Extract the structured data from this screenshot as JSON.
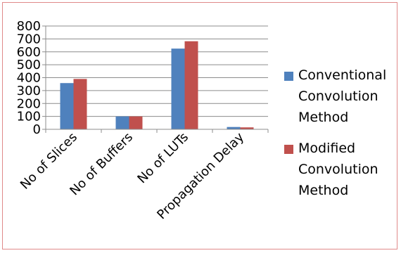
{
  "chart_data": {
    "type": "bar",
    "title": "",
    "xlabel": "",
    "ylabel": "",
    "categories": [
      "No of Slices",
      "No of Buffers",
      "No of LUTs",
      "Propagation Delay"
    ],
    "series": [
      {
        "name": "Conventional Convolution Method",
        "color": "#4f81bd",
        "values": [
          358,
          100,
          625,
          18
        ]
      },
      {
        "name": "Modified Convolution Method",
        "color": "#c0504d",
        "values": [
          390,
          100,
          682,
          15
        ]
      }
    ],
    "ylim": [
      0,
      800
    ],
    "yticks": [
      "0",
      "100",
      "200",
      "300",
      "400",
      "500",
      "600",
      "700",
      "800"
    ],
    "grid": true,
    "legend_position": "right"
  }
}
